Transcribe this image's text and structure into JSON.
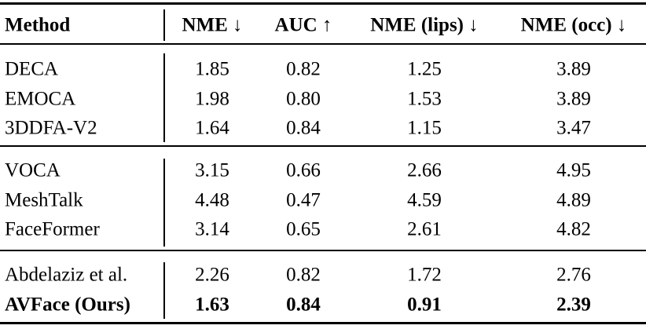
{
  "table": {
    "header": [
      "Method",
      "NME ↓",
      "AUC ↑",
      "NME (lips) ↓",
      "NME (occ) ↓"
    ],
    "groups": [
      [
        {
          "method": "DECA",
          "values": [
            "1.85",
            "0.82",
            "1.25",
            "3.89"
          ]
        },
        {
          "method": "EMOCA",
          "values": [
            "1.98",
            "0.80",
            "1.53",
            "3.89"
          ]
        },
        {
          "method": "3DDFA-V2",
          "values": [
            "1.64",
            "0.84",
            "1.15",
            "3.47"
          ]
        }
      ],
      [
        {
          "method": "VOCA",
          "values": [
            "3.15",
            "0.66",
            "2.66",
            "4.95"
          ]
        },
        {
          "method": "MeshTalk",
          "values": [
            "4.48",
            "0.47",
            "4.59",
            "4.89"
          ]
        },
        {
          "method": "FaceFormer",
          "values": [
            "3.14",
            "0.65",
            "2.61",
            "4.82"
          ]
        }
      ],
      [
        {
          "method": "Abdelaziz et al.",
          "values": [
            "2.26",
            "0.82",
            "1.72",
            "2.76"
          ]
        },
        {
          "method": "AVFace (Ours)",
          "values": [
            "1.63",
            "0.84",
            "0.91",
            "2.39"
          ],
          "bold": true
        }
      ]
    ]
  }
}
